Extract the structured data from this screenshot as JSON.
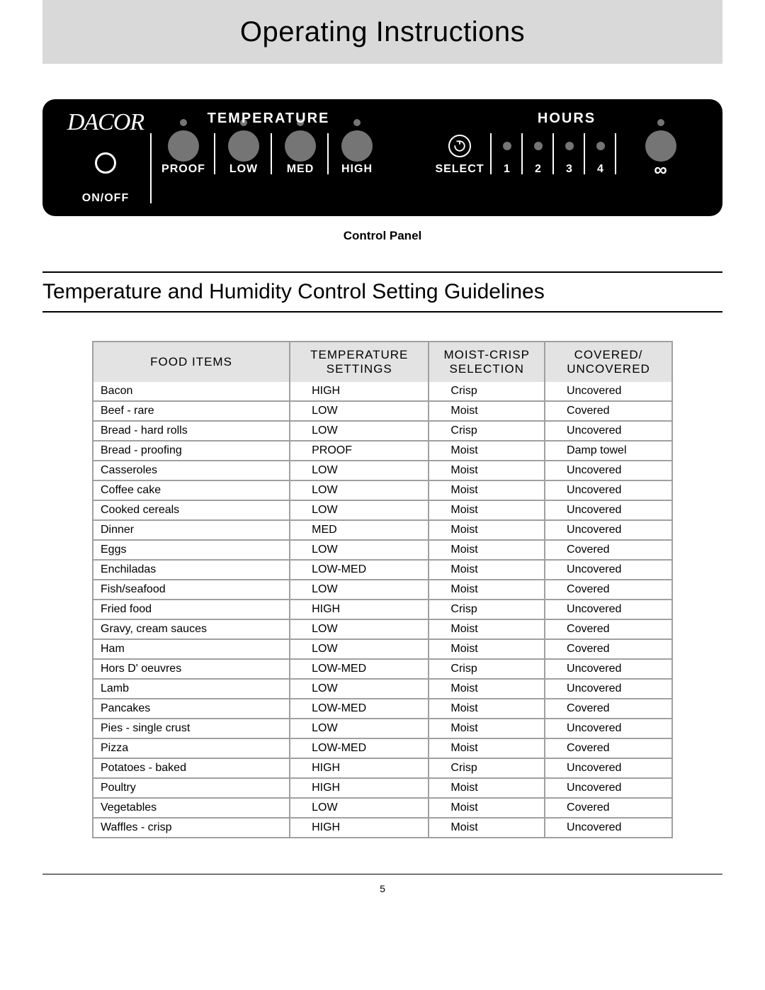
{
  "title": "Operating Instructions",
  "control_panel": {
    "brand": "dacor",
    "section_temperature": "Temperature",
    "section_hours": "Hours",
    "on_off": "On/Off",
    "proof": "Proof",
    "low": "Low",
    "med": "Med",
    "high": "High",
    "select": "Select",
    "h1": "1",
    "h2": "2",
    "h3": "3",
    "h4": "4",
    "infinity": "∞",
    "caption": "Control Panel"
  },
  "section_title": "Temperature and Humidity Control Setting Guidelines",
  "table": {
    "headers": {
      "food_items": "FOOD ITEMS",
      "temp_settings": "TEMPERATURE SETTINGS",
      "moist_crisp": "MOIST-CRISP SELECTION",
      "covered": "COVERED/ UNCOVERED"
    },
    "rows": [
      {
        "food": "Bacon",
        "temp": "HIGH",
        "mc": "Crisp",
        "cov": "Uncovered"
      },
      {
        "food": "Beef - rare",
        "temp": "LOW",
        "mc": "Moist",
        "cov": "Covered"
      },
      {
        "food": "Bread - hard rolls",
        "temp": "LOW",
        "mc": "Crisp",
        "cov": "Uncovered"
      },
      {
        "food": "Bread - proofing",
        "temp": "PROOF",
        "mc": "Moist",
        "cov": "Damp towel"
      },
      {
        "food": "Casseroles",
        "temp": "LOW",
        "mc": "Moist",
        "cov": "Uncovered"
      },
      {
        "food": "Coffee cake",
        "temp": "LOW",
        "mc": "Moist",
        "cov": "Uncovered"
      },
      {
        "food": "Cooked cereals",
        "temp": "LOW",
        "mc": "Moist",
        "cov": "Uncovered"
      },
      {
        "food": "Dinner",
        "temp": "MED",
        "mc": "Moist",
        "cov": "Uncovered"
      },
      {
        "food": "Eggs",
        "temp": "LOW",
        "mc": "Moist",
        "cov": "Covered"
      },
      {
        "food": "Enchiladas",
        "temp": "LOW-MED",
        "mc": "Moist",
        "cov": "Uncovered"
      },
      {
        "food": "Fish/seafood",
        "temp": "LOW",
        "mc": "Moist",
        "cov": "Covered"
      },
      {
        "food": "Fried food",
        "temp": "HIGH",
        "mc": "Crisp",
        "cov": "Uncovered"
      },
      {
        "food": "Gravy, cream sauces",
        "temp": "LOW",
        "mc": "Moist",
        "cov": "Covered"
      },
      {
        "food": "Ham",
        "temp": "LOW",
        "mc": "Moist",
        "cov": "Covered"
      },
      {
        "food": "Hors D' oeuvres",
        "temp": "LOW-MED",
        "mc": "Crisp",
        "cov": "Uncovered"
      },
      {
        "food": "Lamb",
        "temp": "LOW",
        "mc": "Moist",
        "cov": "Uncovered"
      },
      {
        "food": "Pancakes",
        "temp": "LOW-MED",
        "mc": "Moist",
        "cov": "Covered"
      },
      {
        "food": "Pies - single crust",
        "temp": "LOW",
        "mc": "Moist",
        "cov": "Uncovered"
      },
      {
        "food": "Pizza",
        "temp": "LOW-MED",
        "mc": "Moist",
        "cov": "Covered"
      },
      {
        "food": "Potatoes - baked",
        "temp": "HIGH",
        "mc": "Crisp",
        "cov": "Uncovered"
      },
      {
        "food": "Poultry",
        "temp": "HIGH",
        "mc": "Moist",
        "cov": "Uncovered"
      },
      {
        "food": "Vegetables",
        "temp": "LOW",
        "mc": "Moist",
        "cov": "Covered"
      },
      {
        "food": "Waffles - crisp",
        "temp": "HIGH",
        "mc": "Moist",
        "cov": "Uncovered"
      }
    ]
  },
  "page_number": "5"
}
